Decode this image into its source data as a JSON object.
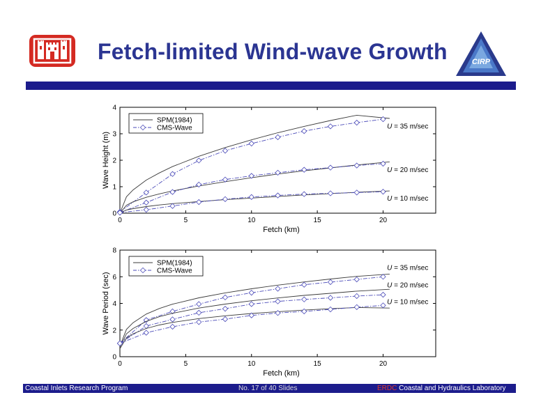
{
  "slide": {
    "title": "Fetch-limited Wind-wave Growth",
    "cirp_logo_text": "CIRP",
    "footer_left": "Coastal Inlets Research Program",
    "footer_center": "No. 17 of 40 Slides",
    "footer_right_prefix": "ERDC",
    "footer_right_rest": " Coastal and Hydraulics Laboratory",
    "colors": {
      "title": "#2b3592",
      "band": "#1c1c8c",
      "logo": "#d42a22",
      "marker": "#4a4ab8",
      "erdc": "#e23a2a"
    }
  },
  "chart_data": [
    {
      "type": "line",
      "xlabel": "Fetch (km)",
      "ylabel": "Wave Height (m)",
      "xlim": [
        0,
        24
      ],
      "ylim": [
        0,
        4
      ],
      "xticks": [
        0,
        5,
        10,
        15,
        20
      ],
      "yticks": [
        0,
        1,
        2,
        3,
        4
      ],
      "legend": {
        "placement": "top-left",
        "entries": [
          "SPM(1984)",
          "CMS-Wave"
        ]
      },
      "annotations": [
        {
          "prefix": "U",
          "text": " = 35 m/sec",
          "x": 20.3,
          "y": 3.2
        },
        {
          "prefix": "U",
          "text": " = 20 m/sec",
          "x": 20.3,
          "y": 1.55
        },
        {
          "prefix": "U",
          "text": " = 10 m/sec",
          "x": 20.3,
          "y": 0.47
        }
      ],
      "series": [
        {
          "style": "solid",
          "x": [
            0,
            0.5,
            1,
            2,
            3,
            4,
            6,
            8,
            10,
            12,
            14,
            16,
            18,
            20.5
          ],
          "y": [
            0,
            0.62,
            0.88,
            1.25,
            1.52,
            1.76,
            2.15,
            2.48,
            2.77,
            3.04,
            3.28,
            3.5,
            3.7,
            3.58
          ]
        },
        {
          "style": "dashdot",
          "x": [
            0,
            2,
            4,
            6,
            8,
            10,
            12,
            14,
            16,
            18,
            20
          ],
          "y": [
            0.05,
            0.78,
            1.48,
            1.99,
            2.36,
            2.63,
            2.87,
            3.1,
            3.28,
            3.42,
            3.55
          ]
        },
        {
          "style": "solid",
          "x": [
            0,
            0.5,
            1,
            2,
            3,
            4,
            6,
            8,
            10,
            12,
            14,
            16,
            18,
            20.5
          ],
          "y": [
            0,
            0.3,
            0.43,
            0.6,
            0.73,
            0.84,
            1.03,
            1.19,
            1.34,
            1.48,
            1.6,
            1.71,
            1.82,
            1.94
          ]
        },
        {
          "style": "dashdot",
          "x": [
            0,
            2,
            4,
            6,
            8,
            10,
            12,
            14,
            16,
            18,
            20
          ],
          "y": [
            0.03,
            0.4,
            0.8,
            1.08,
            1.27,
            1.41,
            1.53,
            1.64,
            1.72,
            1.8,
            1.87
          ]
        },
        {
          "style": "solid",
          "x": [
            0,
            0.5,
            1,
            2,
            3,
            4,
            6,
            8,
            10,
            12,
            14,
            16,
            18,
            20.5
          ],
          "y": [
            0,
            0.12,
            0.17,
            0.25,
            0.31,
            0.36,
            0.44,
            0.51,
            0.57,
            0.63,
            0.69,
            0.74,
            0.79,
            0.84
          ]
        },
        {
          "style": "dashdot",
          "x": [
            0,
            2,
            4,
            6,
            8,
            10,
            12,
            14,
            16,
            18,
            20
          ],
          "y": [
            0.02,
            0.13,
            0.27,
            0.42,
            0.53,
            0.61,
            0.67,
            0.72,
            0.75,
            0.78,
            0.81
          ]
        }
      ]
    },
    {
      "type": "line",
      "xlabel": "Fetch (km)",
      "ylabel": "Wave Period (sec)",
      "xlim": [
        0,
        24
      ],
      "ylim": [
        0,
        8
      ],
      "xticks": [
        0,
        5,
        10,
        15,
        20
      ],
      "yticks": [
        0,
        2,
        4,
        6,
        8
      ],
      "legend": {
        "placement": "top-left",
        "entries": [
          "SPM(1984)",
          "CMS-Wave"
        ]
      },
      "annotations": [
        {
          "prefix": "U",
          "text": " = 35 m/sec",
          "x": 20.3,
          "y": 6.5
        },
        {
          "prefix": "U",
          "text": " = 20 m/sec",
          "x": 20.3,
          "y": 5.2
        },
        {
          "prefix": "U",
          "text": " = 10 m/sec",
          "x": 20.3,
          "y": 3.95
        }
      ],
      "series": [
        {
          "style": "solid",
          "x": [
            0,
            0.5,
            1,
            2,
            3,
            4,
            6,
            8,
            10,
            12,
            14,
            16,
            18,
            20.5
          ],
          "y": [
            0.8,
            2.05,
            2.55,
            3.2,
            3.62,
            3.94,
            4.42,
            4.79,
            5.1,
            5.37,
            5.61,
            5.83,
            6.03,
            6.2
          ]
        },
        {
          "style": "dashdot",
          "x": [
            0,
            2,
            4,
            6,
            8,
            10,
            12,
            14,
            16,
            18,
            20
          ],
          "y": [
            1.0,
            2.75,
            3.4,
            3.95,
            4.45,
            4.8,
            5.1,
            5.4,
            5.6,
            5.8,
            6.0
          ]
        },
        {
          "style": "solid",
          "x": [
            0,
            0.5,
            1,
            2,
            3,
            4,
            6,
            8,
            10,
            12,
            14,
            16,
            18,
            20.5
          ],
          "y": [
            0.7,
            1.72,
            2.12,
            2.65,
            3.0,
            3.26,
            3.65,
            3.95,
            4.2,
            4.41,
            4.6,
            4.76,
            4.92,
            5.06
          ]
        },
        {
          "style": "dashdot",
          "x": [
            0,
            2,
            4,
            6,
            8,
            10,
            12,
            14,
            16,
            18,
            20
          ],
          "y": [
            1.0,
            2.3,
            2.8,
            3.3,
            3.6,
            3.95,
            4.15,
            4.3,
            4.42,
            4.55,
            4.65
          ]
        },
        {
          "style": "solid",
          "x": [
            0,
            0.5,
            1,
            2,
            3,
            4,
            6,
            8,
            10,
            12,
            14,
            16,
            18,
            20.5
          ],
          "y": [
            0.6,
            1.4,
            1.72,
            2.12,
            2.38,
            2.57,
            2.86,
            3.07,
            3.24,
            3.38,
            3.5,
            3.6,
            3.69,
            3.65
          ]
        },
        {
          "style": "dashdot",
          "x": [
            0,
            2,
            4,
            6,
            8,
            10,
            12,
            14,
            16,
            18,
            20
          ],
          "y": [
            1.0,
            1.8,
            2.25,
            2.6,
            2.82,
            3.1,
            3.28,
            3.4,
            3.55,
            3.72,
            3.85
          ]
        }
      ]
    }
  ]
}
